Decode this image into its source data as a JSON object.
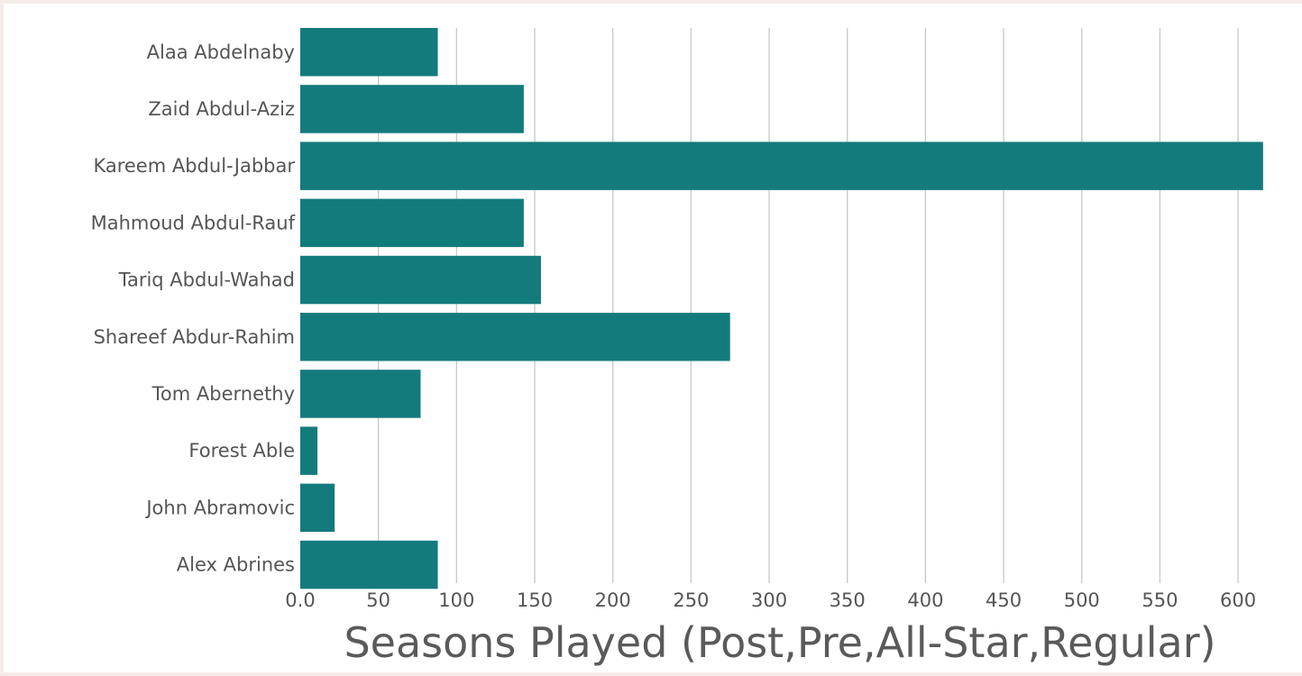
{
  "chart_data": {
    "type": "bar",
    "orientation": "horizontal",
    "categories": [
      "Alaa Abdelnaby",
      "Zaid Abdul-Aziz",
      "Kareem Abdul-Jabbar",
      "Mahmoud Abdul-Rauf",
      "Tariq Abdul-Wahad",
      "Shareef Abdur-Rahim",
      "Tom Abernethy",
      "Forest Able",
      "John Abramovic",
      "Alex Abrines"
    ],
    "values": [
      88,
      143,
      616,
      143,
      154,
      275,
      77,
      11,
      22,
      88
    ],
    "xlabel": "Seasons Played (Post,Pre,All-Star,Regular)",
    "ylabel": "",
    "xlim": [
      0,
      620
    ],
    "xticks": [
      0,
      50,
      100,
      150,
      200,
      250,
      300,
      350,
      400,
      450,
      500,
      550,
      600
    ],
    "xtick_labels": [
      "0.0",
      "50",
      "100",
      "150",
      "200",
      "250",
      "300",
      "350",
      "400",
      "450",
      "500",
      "550",
      "600"
    ],
    "grid": "vertical",
    "bar_color": "#147b7d"
  }
}
